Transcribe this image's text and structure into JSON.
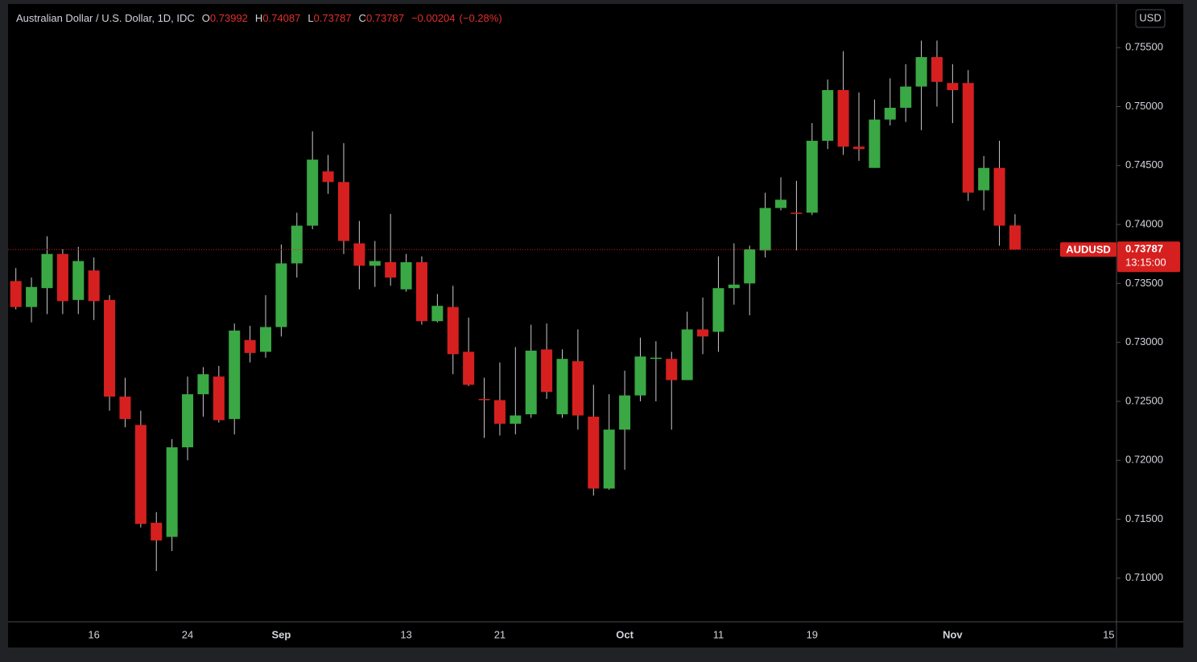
{
  "header": {
    "title": "Australian Dollar / U.S. Dollar, 1D, IDC",
    "labels": [
      "O",
      "H",
      "L",
      "C"
    ],
    "change": "−0.00204",
    "change_pct": "(−0.28%)",
    "currency": "USD",
    "countdown": "13:15:00"
  },
  "chart_data": {
    "type": "candlestick",
    "categories": [
      null,
      null,
      null,
      null,
      null,
      "16",
      null,
      null,
      null,
      null,
      null,
      "24",
      null,
      null,
      null,
      null,
      null,
      "Sep",
      null,
      null,
      null,
      null,
      null,
      null,
      null,
      "13",
      null,
      null,
      null,
      null,
      null,
      "21",
      null,
      null,
      null,
      null,
      null,
      null,
      null,
      "Oct",
      null,
      null,
      null,
      null,
      null,
      "11",
      null,
      null,
      null,
      null,
      null,
      "19",
      null,
      null,
      null,
      null,
      null,
      null,
      null,
      null,
      "Nov",
      null,
      null,
      null,
      null,
      null,
      null,
      null,
      null,
      null,
      "15"
    ],
    "series": [
      {
        "name": "AUDUSD",
        "up_color": "#3aa844",
        "down_color": "#d6201f",
        "open": [
          0.7352,
          0.733,
          0.7346,
          0.7375,
          0.7336,
          0.7361,
          0.7336,
          0.7254,
          0.723,
          0.7147,
          0.7135,
          0.7211,
          0.7256,
          0.7271,
          0.7235,
          0.7302,
          0.7292,
          0.7313,
          0.7367,
          0.7399,
          0.7445,
          0.7436,
          0.7384,
          0.7365,
          0.7368,
          0.7345,
          0.7368,
          0.7318,
          0.733,
          0.7292,
          0.7252,
          0.7251,
          0.7231,
          0.7239,
          0.7294,
          0.7239,
          0.7284,
          0.7237,
          0.7176,
          0.7226,
          0.7255,
          0.7286,
          0.7286,
          0.7268,
          0.7311,
          0.7309,
          0.7346,
          0.735,
          0.7378,
          0.7414,
          0.741,
          0.741,
          0.7471,
          0.7514,
          0.7466,
          0.7448,
          0.7489,
          0.7499,
          0.7517,
          0.7542,
          0.752,
          0.752,
          0.7429,
          0.7448,
          0.73992,
          null,
          null,
          null,
          null,
          null,
          null
        ],
        "high": [
          0.7363,
          0.7355,
          0.739,
          0.7379,
          0.7381,
          0.7372,
          0.734,
          0.727,
          0.7242,
          0.7156,
          0.7218,
          0.7271,
          0.7279,
          0.728,
          0.7316,
          0.7314,
          0.734,
          0.7383,
          0.741,
          0.7479,
          0.7459,
          0.7469,
          0.7403,
          0.7386,
          0.7409,
          0.7375,
          0.7373,
          0.7341,
          0.7348,
          0.7321,
          0.727,
          0.7283,
          0.7296,
          0.7315,
          0.7316,
          0.7294,
          0.7311,
          0.7264,
          0.7256,
          0.7276,
          0.7304,
          0.7301,
          0.7292,
          0.7326,
          0.7338,
          0.7373,
          0.7384,
          0.7382,
          0.7427,
          0.744,
          0.7437,
          0.7486,
          0.7523,
          0.7547,
          0.7512,
          0.7506,
          0.7524,
          0.7536,
          0.7556,
          0.7556,
          0.7536,
          0.7531,
          0.7458,
          0.7471,
          0.74087,
          null,
          null,
          null,
          null,
          null,
          null
        ],
        "low": [
          0.7328,
          0.7317,
          0.7324,
          0.7324,
          0.7324,
          0.7319,
          0.7242,
          0.7228,
          0.7143,
          0.7106,
          0.7123,
          0.72,
          0.7237,
          0.7232,
          0.7222,
          0.7283,
          0.7287,
          0.7305,
          0.7355,
          0.7396,
          0.7426,
          0.7375,
          0.7345,
          0.7347,
          0.7348,
          0.7343,
          0.7315,
          0.7317,
          0.7273,
          0.7263,
          0.7219,
          0.7221,
          0.7222,
          0.7236,
          0.7252,
          0.7236,
          0.7226,
          0.717,
          0.7175,
          0.7192,
          0.725,
          0.725,
          0.7226,
          0.7268,
          0.729,
          0.7292,
          0.7332,
          0.7323,
          0.7372,
          0.7412,
          0.7378,
          0.7408,
          0.7464,
          0.7459,
          0.7454,
          0.7448,
          0.7484,
          0.7487,
          0.748,
          0.75,
          0.7486,
          0.742,
          0.7412,
          0.7382,
          0.73787,
          null,
          null,
          null,
          null,
          null,
          null
        ],
        "close": [
          0.733,
          0.7347,
          0.7375,
          0.7335,
          0.7369,
          0.7335,
          0.7254,
          0.7235,
          0.7146,
          0.7132,
          0.7211,
          0.7256,
          0.7273,
          0.7234,
          0.731,
          0.7291,
          0.7313,
          0.7367,
          0.7399,
          0.7455,
          0.7436,
          0.7386,
          0.7365,
          0.7369,
          0.7355,
          0.7368,
          0.7318,
          0.7331,
          0.729,
          0.7264,
          0.7251,
          0.7231,
          0.7238,
          0.7293,
          0.7258,
          0.7286,
          0.7238,
          0.7176,
          0.7226,
          0.7255,
          0.7288,
          0.7287,
          0.7268,
          0.7311,
          0.7305,
          0.7346,
          0.7349,
          0.7379,
          0.7414,
          0.7421,
          0.7409,
          0.7471,
          0.7514,
          0.7466,
          0.7464,
          0.7489,
          0.7499,
          0.7517,
          0.7542,
          0.7521,
          0.7514,
          0.7427,
          0.7448,
          0.7399,
          0.73787,
          null,
          null,
          null,
          null,
          null,
          null
        ]
      }
    ],
    "ylim": [
      0.7063,
      0.7587
    ],
    "yticks": [
      {
        "value": 0.71,
        "label": "0.71000"
      },
      {
        "value": 0.715,
        "label": "0.71500"
      },
      {
        "value": 0.72,
        "label": "0.72000"
      },
      {
        "value": 0.725,
        "label": "0.72500"
      },
      {
        "value": 0.73,
        "label": "0.73000"
      },
      {
        "value": 0.735,
        "label": "0.73500"
      },
      {
        "value": 0.74,
        "label": "0.74000"
      },
      {
        "value": 0.745,
        "label": "0.74500"
      },
      {
        "value": 0.75,
        "label": "0.75000"
      },
      {
        "value": 0.755,
        "label": "0.75500"
      }
    ],
    "grid": false,
    "last_price_line": true
  }
}
